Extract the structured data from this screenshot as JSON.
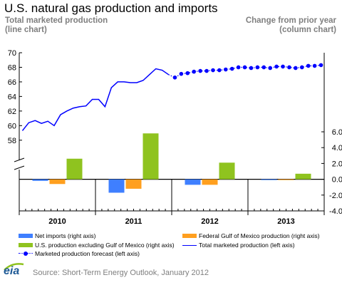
{
  "title": "U.S. natural gas production and imports",
  "subtitle_left": [
    "Total marketed production",
    "(line chart)"
  ],
  "subtitle_right": [
    "Change from prior year",
    "(column chart)"
  ],
  "source": "Source: Short-Term Energy Outlook, January 2012",
  "logo_text": "eia",
  "colors": {
    "net_imports": "#3f7fff",
    "federal_gom": "#ff9f1f",
    "us_ex_gom": "#8fc31f",
    "production_line": "#0000ff"
  },
  "legend": [
    {
      "label": "Net imports  (right axis)",
      "type": "bar",
      "color": "#3f7fff"
    },
    {
      "label": "Federal Gulf of Mexico production  (right axis)",
      "type": "bar",
      "color": "#ff9f1f"
    },
    {
      "label": "U.S. production  excluding Gulf of Mexico (right axis)",
      "type": "bar",
      "color": "#8fc31f"
    },
    {
      "label": "Total marketed production  (left axis)",
      "type": "line",
      "color": "#0000ff"
    },
    {
      "label": "Marketed production  forecast (left axis)",
      "type": "dots",
      "color": "#0000ff"
    }
  ],
  "chart_data": {
    "type": "line+bar",
    "years": [
      "2010",
      "2011",
      "2012",
      "2013"
    ],
    "left_axis": {
      "ylim": [
        57,
        70
      ],
      "ticks": [
        58,
        60,
        62,
        64,
        66,
        68,
        70
      ],
      "tick_labels": [
        "58",
        "60",
        "62",
        "64",
        "66",
        "68",
        "70"
      ]
    },
    "right_axis": {
      "ylim": [
        -4,
        6
      ],
      "ticks": [
        -4,
        -2,
        0,
        2,
        4,
        6
      ],
      "tick_labels": [
        "-4.0",
        "-2.0",
        "0.0",
        "2.0",
        "4.0",
        "6.0"
      ]
    },
    "series": [
      {
        "name": "Total marketed production (left axis)",
        "axis": "left",
        "type": "line",
        "x_month_index": [
          0,
          1,
          2,
          3,
          4,
          5,
          6,
          7,
          8,
          9,
          10,
          11,
          12,
          13,
          14,
          15,
          16,
          17,
          18,
          19,
          20,
          21,
          22,
          23
        ],
        "values": [
          59.3,
          60.4,
          60.7,
          60.3,
          60.6,
          60.0,
          61.5,
          62.0,
          62.4,
          62.6,
          62.7,
          63.6,
          63.6,
          62.6,
          65.2,
          66.0,
          66.0,
          65.9,
          65.9,
          66.2,
          67.0,
          67.8,
          67.6,
          67.0
        ],
        "color": "#0000ff"
      },
      {
        "name": "Marketed production forecast (left axis)",
        "axis": "left",
        "type": "dots",
        "x_month_index": [
          23,
          24,
          25,
          26,
          27,
          28,
          29,
          30,
          31,
          32,
          33,
          34,
          35,
          36,
          37,
          38,
          39,
          40,
          41,
          42,
          43,
          44,
          45,
          46,
          47
        ],
        "values": [
          67.0,
          66.6,
          67.1,
          67.2,
          67.4,
          67.5,
          67.5,
          67.6,
          67.6,
          67.7,
          67.8,
          68.0,
          68.0,
          67.9,
          68.0,
          68.0,
          67.9,
          68.1,
          68.1,
          68.0,
          67.9,
          68.0,
          68.2,
          68.2,
          68.3
        ],
        "color": "#0000ff"
      },
      {
        "name": "Net imports (right axis)",
        "axis": "right",
        "type": "bar",
        "values": [
          -0.2,
          -1.7,
          -0.7,
          -0.1
        ],
        "color": "#3f7fff"
      },
      {
        "name": "Federal Gulf of Mexico production (right axis)",
        "axis": "right",
        "type": "bar",
        "values": [
          -0.6,
          -1.2,
          -0.7,
          -0.1
        ],
        "color": "#ff9f1f"
      },
      {
        "name": "U.S. production excluding Gulf of Mexico (right axis)",
        "axis": "right",
        "type": "bar",
        "values": [
          2.6,
          5.8,
          2.1,
          0.7
        ],
        "color": "#8fc31f"
      }
    ],
    "grid": false
  }
}
